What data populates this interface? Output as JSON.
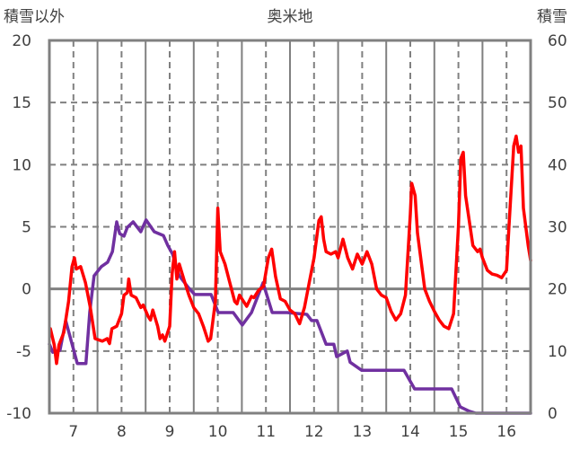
{
  "chart_data": {
    "type": "line",
    "title": "奥米地",
    "ylabel_left": "積雪以外",
    "ylabel_right": "積雪",
    "xlim": [
      6.5,
      16.5
    ],
    "ylim_left": [
      -10,
      20
    ],
    "ylim_right": [
      0,
      60
    ],
    "xticks": [
      7,
      8,
      9,
      10,
      11,
      12,
      13,
      14,
      15,
      16
    ],
    "yticks_left": [
      20,
      15,
      10,
      5,
      0,
      -5,
      -10
    ],
    "yticks_right": [
      60,
      50,
      40,
      30,
      20,
      10,
      0
    ],
    "grid": true,
    "series": [
      {
        "name": "積雪以外",
        "axis": "left",
        "color": "#FF0000",
        "points": [
          [
            6.52,
            -3.2
          ],
          [
            6.6,
            -4.5
          ],
          [
            6.65,
            -6
          ],
          [
            6.7,
            -4.5
          ],
          [
            6.8,
            -3.5
          ],
          [
            6.9,
            -1
          ],
          [
            6.97,
            1.8
          ],
          [
            7.02,
            2.5
          ],
          [
            7.06,
            1.6
          ],
          [
            7.15,
            1.8
          ],
          [
            7.25,
            0.5
          ],
          [
            7.35,
            -1.5
          ],
          [
            7.45,
            -4
          ],
          [
            7.6,
            -4.2
          ],
          [
            7.7,
            -4
          ],
          [
            7.75,
            -4.4
          ],
          [
            7.8,
            -3.2
          ],
          [
            7.9,
            -3
          ],
          [
            8.0,
            -2
          ],
          [
            8.05,
            -0.5
          ],
          [
            8.12,
            -0.3
          ],
          [
            8.15,
            0.8
          ],
          [
            8.2,
            -0.5
          ],
          [
            8.3,
            -0.7
          ],
          [
            8.4,
            -1.5
          ],
          [
            8.45,
            -1.3
          ],
          [
            8.55,
            -2.2
          ],
          [
            8.6,
            -2.5
          ],
          [
            8.65,
            -1.7
          ],
          [
            8.75,
            -3
          ],
          [
            8.8,
            -4
          ],
          [
            8.85,
            -3.7
          ],
          [
            8.9,
            -4.2
          ],
          [
            9.0,
            -3
          ],
          [
            9.05,
            1.2
          ],
          [
            9.1,
            3
          ],
          [
            9.15,
            0.8
          ],
          [
            9.2,
            2
          ],
          [
            9.3,
            0.7
          ],
          [
            9.4,
            -0.5
          ],
          [
            9.5,
            -1.5
          ],
          [
            9.6,
            -2
          ],
          [
            9.7,
            -3
          ],
          [
            9.8,
            -4.2
          ],
          [
            9.85,
            -4
          ],
          [
            9.95,
            -1
          ],
          [
            10.0,
            6.5
          ],
          [
            10.05,
            3
          ],
          [
            10.15,
            2
          ],
          [
            10.25,
            0.5
          ],
          [
            10.35,
            -1
          ],
          [
            10.4,
            -1.2
          ],
          [
            10.45,
            -0.5
          ],
          [
            10.5,
            -0.8
          ],
          [
            10.6,
            -1.4
          ],
          [
            10.7,
            -0.6
          ],
          [
            10.75,
            -0.7
          ],
          [
            10.85,
            -0.1
          ],
          [
            10.95,
            0.2
          ],
          [
            11.05,
            2.5
          ],
          [
            11.12,
            3.2
          ],
          [
            11.2,
            1
          ],
          [
            11.3,
            -0.8
          ],
          [
            11.4,
            -1
          ],
          [
            11.5,
            -1.7
          ],
          [
            11.6,
            -2
          ],
          [
            11.7,
            -2.8
          ],
          [
            11.8,
            -1.5
          ],
          [
            11.9,
            0.5
          ],
          [
            12.0,
            2.5
          ],
          [
            12.1,
            5.5
          ],
          [
            12.15,
            5.8
          ],
          [
            12.2,
            4
          ],
          [
            12.25,
            3
          ],
          [
            12.35,
            2.8
          ],
          [
            12.45,
            3
          ],
          [
            12.5,
            2.5
          ],
          [
            12.6,
            4
          ],
          [
            12.7,
            2.5
          ],
          [
            12.8,
            1.6
          ],
          [
            12.9,
            2.8
          ],
          [
            13.0,
            2
          ],
          [
            13.1,
            3
          ],
          [
            13.2,
            2
          ],
          [
            13.3,
            0
          ],
          [
            13.4,
            -0.5
          ],
          [
            13.5,
            -0.7
          ],
          [
            13.6,
            -1.8
          ],
          [
            13.7,
            -2.5
          ],
          [
            13.8,
            -2
          ],
          [
            13.9,
            -0.5
          ],
          [
            14.0,
            6
          ],
          [
            14.03,
            8.5
          ],
          [
            14.1,
            7.5
          ],
          [
            14.15,
            4.5
          ],
          [
            14.3,
            0
          ],
          [
            14.4,
            -1
          ],
          [
            14.5,
            -1.8
          ],
          [
            14.6,
            -2.5
          ],
          [
            14.7,
            -3
          ],
          [
            14.8,
            -3.2
          ],
          [
            14.9,
            -2
          ],
          [
            15.0,
            5
          ],
          [
            15.05,
            10.5
          ],
          [
            15.1,
            11
          ],
          [
            15.15,
            7.5
          ],
          [
            15.3,
            3.5
          ],
          [
            15.4,
            3
          ],
          [
            15.45,
            3.2
          ],
          [
            15.5,
            2.5
          ],
          [
            15.6,
            1.5
          ],
          [
            15.7,
            1.2
          ],
          [
            15.8,
            1.1
          ],
          [
            15.9,
            0.9
          ],
          [
            16.0,
            1.5
          ],
          [
            16.05,
            5
          ],
          [
            16.15,
            11.5
          ],
          [
            16.2,
            12.3
          ],
          [
            16.25,
            11
          ],
          [
            16.3,
            11.5
          ],
          [
            16.35,
            6.5
          ],
          [
            16.45,
            3.5
          ],
          [
            16.5,
            2.3
          ]
        ]
      },
      {
        "name": "積雪",
        "axis": "right",
        "color": "#7030A0",
        "points": [
          [
            6.5,
            11.1
          ],
          [
            6.57,
            9.8
          ],
          [
            6.72,
            10.1
          ],
          [
            6.84,
            14.9
          ],
          [
            7.08,
            8
          ],
          [
            7.26,
            8
          ],
          [
            7.34,
            16.3
          ],
          [
            7.43,
            22.1
          ],
          [
            7.58,
            23.6
          ],
          [
            7.71,
            24.3
          ],
          [
            7.81,
            26
          ],
          [
            7.9,
            30.8
          ],
          [
            7.96,
            28.9
          ],
          [
            8.05,
            28.5
          ],
          [
            8.12,
            29.9
          ],
          [
            8.24,
            30.8
          ],
          [
            8.4,
            29.2
          ],
          [
            8.51,
            31.1
          ],
          [
            8.68,
            29.2
          ],
          [
            8.87,
            28.6
          ],
          [
            8.96,
            27
          ],
          [
            9.06,
            25.6
          ],
          [
            9.2,
            22.1
          ],
          [
            9.39,
            20.2
          ],
          [
            9.52,
            19.1
          ],
          [
            9.86,
            19.1
          ],
          [
            10.01,
            16.2
          ],
          [
            10.32,
            16.2
          ],
          [
            10.51,
            14.2
          ],
          [
            10.7,
            16.2
          ],
          [
            10.94,
            21
          ],
          [
            11.13,
            16.2
          ],
          [
            11.44,
            16.2
          ],
          [
            11.85,
            15.9
          ],
          [
            11.95,
            14.9
          ],
          [
            12.06,
            14.9
          ],
          [
            12.25,
            11.1
          ],
          [
            12.41,
            11.1
          ],
          [
            12.47,
            9.1
          ],
          [
            12.69,
            10
          ],
          [
            12.75,
            8.2
          ],
          [
            12.99,
            6.9
          ],
          [
            13.87,
            6.9
          ],
          [
            14.09,
            3.9
          ],
          [
            14.86,
            3.9
          ],
          [
            15.04,
            1
          ],
          [
            15.23,
            0.3
          ],
          [
            15.36,
            0
          ],
          [
            16.5,
            0
          ]
        ]
      }
    ]
  }
}
